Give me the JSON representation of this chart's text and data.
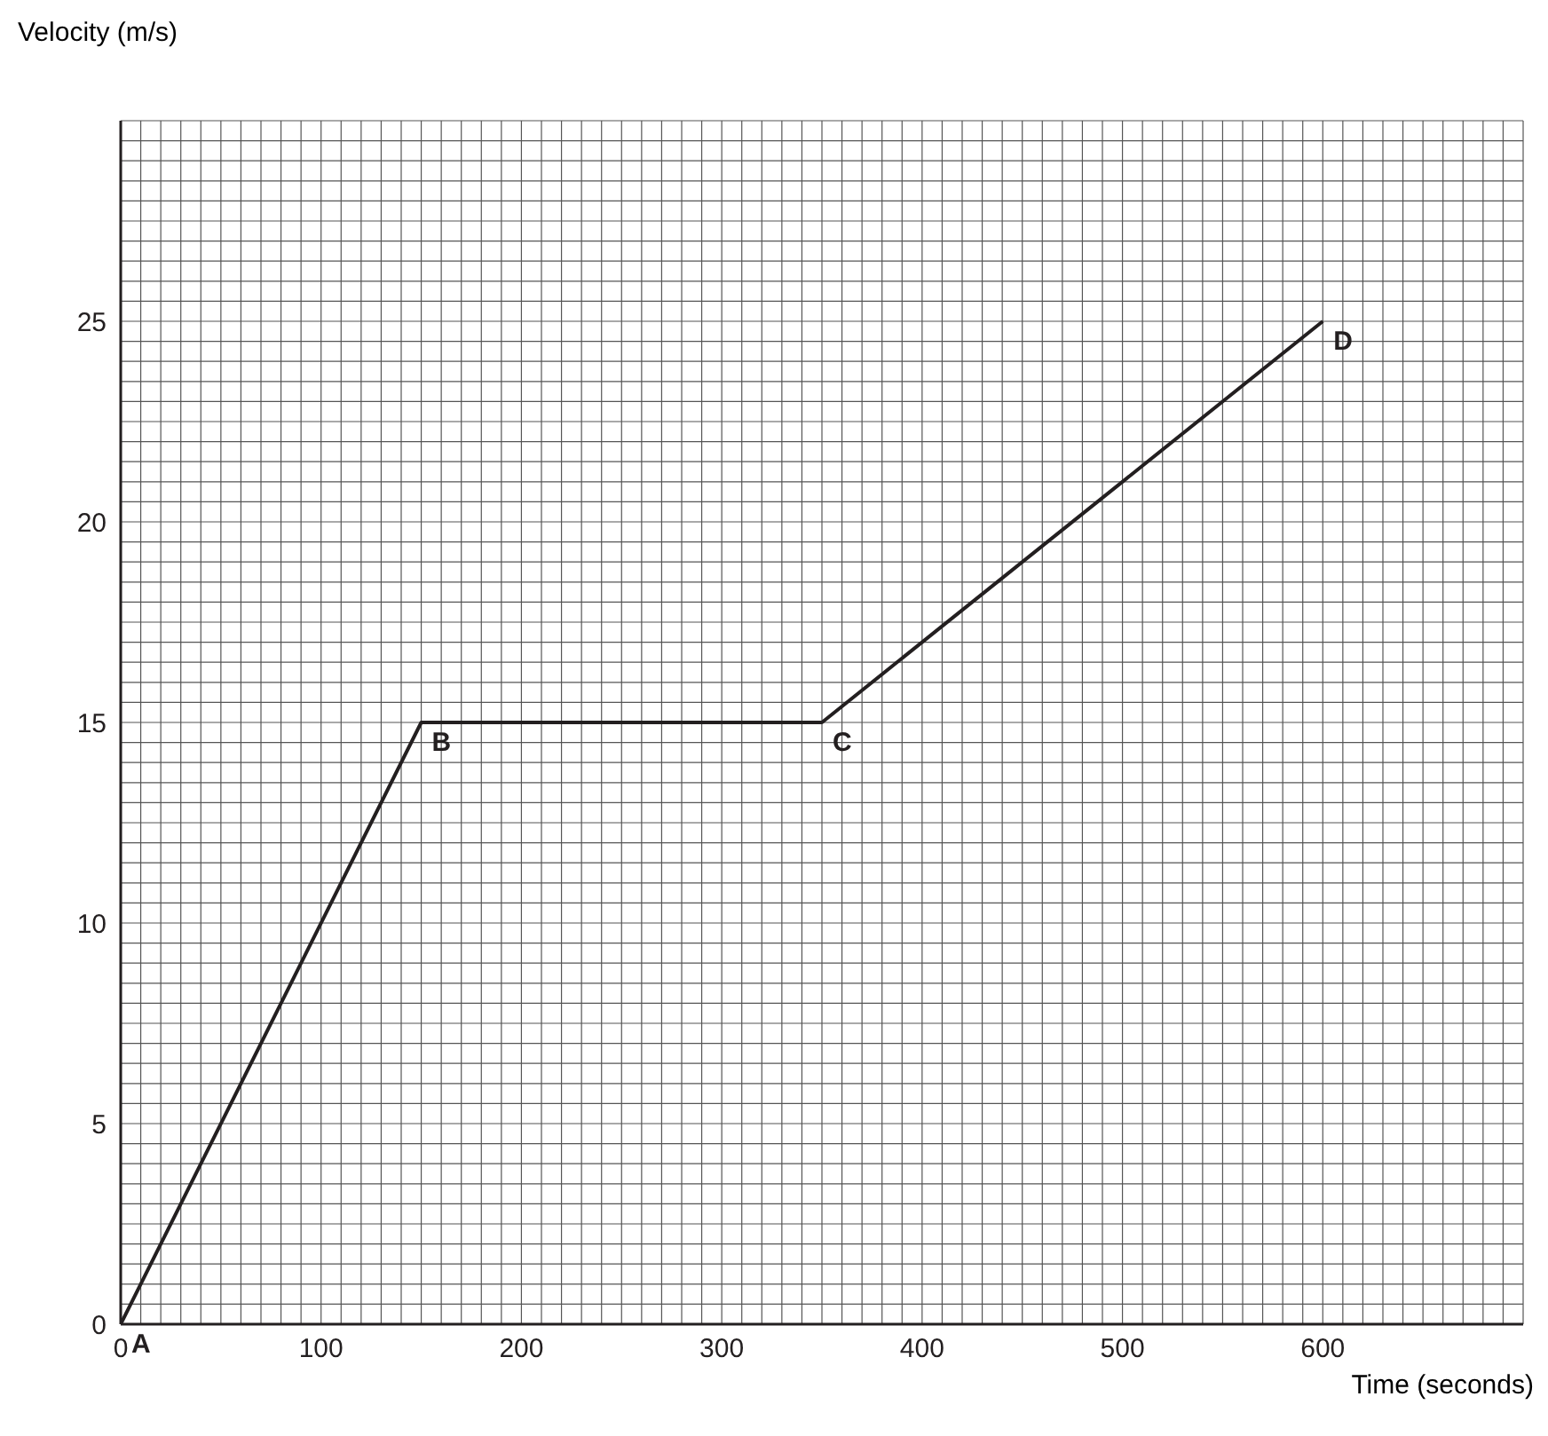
{
  "chart_data": {
    "type": "line",
    "xlabel": "Time (seconds)",
    "ylabel": "Velocity (m/s)",
    "x": [
      0,
      150,
      350,
      600
    ],
    "series": [
      {
        "color": "#231f20",
        "values": [
          0,
          15,
          15,
          25
        ]
      }
    ],
    "xlim": [
      0,
      700
    ],
    "ylim": [
      0,
      30
    ],
    "xticks": [
      0,
      {
        "value": 10,
        "label": null
      },
      {
        "value": 20,
        "label": null
      },
      {
        "value": 30,
        "label": null
      },
      {
        "value": 40,
        "label": null
      },
      {
        "value": 50,
        "label": null
      },
      {
        "value": 60,
        "label": null
      },
      {
        "value": 70,
        "label": null
      },
      {
        "value": 80,
        "label": null
      },
      {
        "value": 90,
        "label": null
      },
      100,
      {
        "value": 110,
        "label": null
      },
      {
        "value": 120,
        "label": null
      },
      {
        "value": 130,
        "label": null
      },
      {
        "value": 140,
        "label": null
      },
      {
        "value": 150,
        "label": null
      },
      {
        "value": 160,
        "label": null
      },
      {
        "value": 170,
        "label": null
      },
      {
        "value": 180,
        "label": null
      },
      {
        "value": 190,
        "label": null
      },
      200,
      {
        "value": 210,
        "label": null
      },
      {
        "value": 220,
        "label": null
      },
      {
        "value": 230,
        "label": null
      },
      {
        "value": 240,
        "label": null
      },
      {
        "value": 250,
        "label": null
      },
      {
        "value": 260,
        "label": null
      },
      {
        "value": 270,
        "label": null
      },
      {
        "value": 280,
        "label": null
      },
      {
        "value": 290,
        "label": null
      },
      300,
      {
        "value": 310,
        "label": null
      },
      {
        "value": 320,
        "label": null
      },
      {
        "value": 330,
        "label": null
      },
      {
        "value": 340,
        "label": null
      },
      {
        "value": 350,
        "label": null
      },
      {
        "value": 360,
        "label": null
      },
      {
        "value": 370,
        "label": null
      },
      {
        "value": 380,
        "label": null
      },
      {
        "value": 390,
        "label": null
      },
      400,
      {
        "value": 410,
        "label": null
      },
      {
        "value": 420,
        "label": null
      },
      {
        "value": 430,
        "label": null
      },
      {
        "value": 440,
        "label": null
      },
      {
        "value": 450,
        "label": null
      },
      {
        "value": 460,
        "label": null
      },
      {
        "value": 470,
        "label": null
      },
      {
        "value": 480,
        "label": null
      },
      {
        "value": 490,
        "label": null
      },
      500,
      {
        "value": 510,
        "label": null
      },
      {
        "value": 520,
        "label": null
      },
      {
        "value": 530,
        "label": null
      },
      {
        "value": 540,
        "label": null
      },
      {
        "value": 550,
        "label": null
      },
      {
        "value": 560,
        "label": null
      },
      {
        "value": 570,
        "label": null
      },
      {
        "value": 580,
        "label": null
      },
      {
        "value": 590,
        "label": null
      },
      600,
      {
        "value": 610,
        "label": null
      },
      {
        "value": 620,
        "label": null
      },
      {
        "value": 630,
        "label": null
      },
      {
        "value": 640,
        "label": null
      },
      {
        "value": 650,
        "label": null
      },
      {
        "value": 660,
        "label": null
      },
      {
        "value": 670,
        "label": null
      },
      {
        "value": 680,
        "label": null
      },
      {
        "value": 690,
        "label": null
      },
      {
        "value": 700,
        "label": null
      }
    ],
    "yticks": [
      0,
      {
        "value": 0.5,
        "label": null
      },
      {
        "value": 1,
        "label": null
      },
      {
        "value": 1.5,
        "label": null
      },
      {
        "value": 2,
        "label": null
      },
      {
        "value": 2.5,
        "label": null
      },
      {
        "value": 3,
        "label": null
      },
      {
        "value": 3.5,
        "label": null
      },
      {
        "value": 4,
        "label": null
      },
      {
        "value": 4.5,
        "label": null
      },
      5,
      {
        "value": 5.5,
        "label": null
      },
      {
        "value": 6,
        "label": null
      },
      {
        "value": 6.5,
        "label": null
      },
      {
        "value": 7,
        "label": null
      },
      {
        "value": 7.5,
        "label": null
      },
      {
        "value": 8,
        "label": null
      },
      {
        "value": 8.5,
        "label": null
      },
      {
        "value": 9,
        "label": null
      },
      {
        "value": 9.5,
        "label": null
      },
      10,
      {
        "value": 10.5,
        "label": null
      },
      {
        "value": 11,
        "label": null
      },
      {
        "value": 11.5,
        "label": null
      },
      {
        "value": 12,
        "label": null
      },
      {
        "value": 12.5,
        "label": null
      },
      {
        "value": 13,
        "label": null
      },
      {
        "value": 13.5,
        "label": null
      },
      {
        "value": 14,
        "label": null
      },
      {
        "value": 14.5,
        "label": null
      },
      15,
      {
        "value": 15.5,
        "label": null
      },
      {
        "value": 16,
        "label": null
      },
      {
        "value": 16.5,
        "label": null
      },
      {
        "value": 17,
        "label": null
      },
      {
        "value": 17.5,
        "label": null
      },
      {
        "value": 18,
        "label": null
      },
      {
        "value": 18.5,
        "label": null
      },
      {
        "value": 19,
        "label": null
      },
      {
        "value": 19.5,
        "label": null
      },
      20,
      {
        "value": 20.5,
        "label": null
      },
      {
        "value": 21,
        "label": null
      },
      {
        "value": 21.5,
        "label": null
      },
      {
        "value": 22,
        "label": null
      },
      {
        "value": 22.5,
        "label": null
      },
      {
        "value": 23,
        "label": null
      },
      {
        "value": 23.5,
        "label": null
      },
      {
        "value": 24,
        "label": null
      },
      {
        "value": 24.5,
        "label": null
      },
      25,
      {
        "value": 25.5,
        "label": null
      },
      {
        "value": 26,
        "label": null
      },
      {
        "value": 26.5,
        "label": null
      },
      {
        "value": 27,
        "label": null
      },
      {
        "value": 27.5,
        "label": null
      },
      {
        "value": 28,
        "label": null
      },
      {
        "value": 28.5,
        "label": null
      },
      {
        "value": 29,
        "label": null
      },
      {
        "value": 29.5,
        "label": null
      },
      {
        "value": 30,
        "label": null
      }
    ],
    "grid": true,
    "marker": "none",
    "line_style": "solid",
    "annotations": [
      {
        "text": "A",
        "x": 0,
        "y": 0
      },
      {
        "text": "B",
        "x": 150,
        "y": 15
      },
      {
        "text": "C",
        "x": 350,
        "y": 15
      },
      {
        "text": "D",
        "x": 600,
        "y": 25
      }
    ]
  }
}
